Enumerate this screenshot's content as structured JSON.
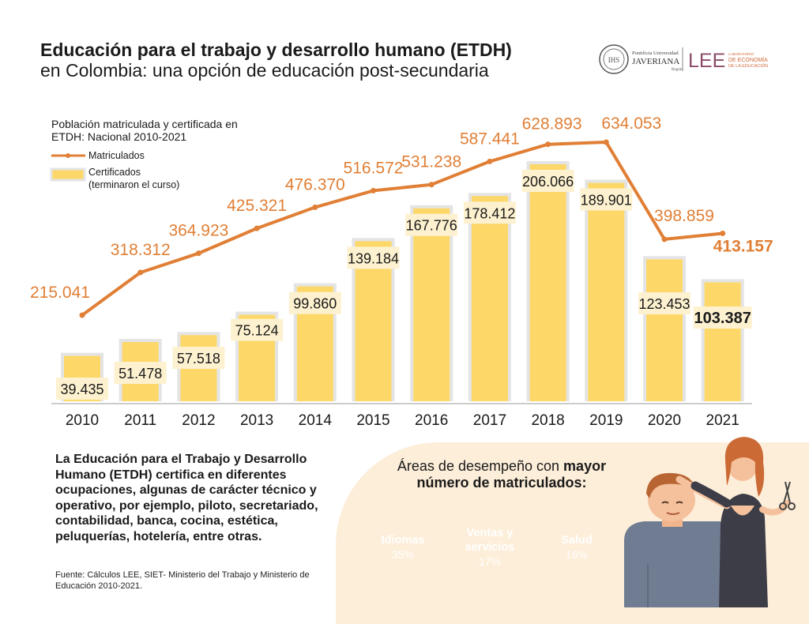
{
  "header": {
    "title_line1": "Educación para el trabajo y desarrollo humano (ETDH)",
    "title_line2": "en Colombia: una opción de educación post-secundaria"
  },
  "logos": {
    "university_line1": "Pontificia Universidad",
    "university_name": "JAVERIANA",
    "university_city": "Bogotá",
    "lee_short": "LEE",
    "lee_line1": "LABORATORIO",
    "lee_line2": "DE ECONOMÍA",
    "lee_line3": "DE LA EDUCACIÓN"
  },
  "chart_data": {
    "type": "bar",
    "title": "Población matriculada y certificada en ETDH: Nacional 2010-2021",
    "title_line1": "Población matriculada y certificada en",
    "title_line2": "ETDH: Nacional 2010-2021",
    "categories": [
      "2010",
      "2011",
      "2012",
      "2013",
      "2014",
      "2015",
      "2016",
      "2017",
      "2018",
      "2019",
      "2020",
      "2021"
    ],
    "series": [
      {
        "name": "Matriculados",
        "type": "line",
        "values": [
          215041,
          318312,
          364923,
          425321,
          476370,
          516572,
          531238,
          587441,
          628893,
          634053,
          398859,
          413157
        ],
        "labels": [
          "215.041",
          "318.312",
          "364.923",
          "425.321",
          "476.370",
          "516.572",
          "531.238",
          "587.441",
          "628.893",
          "634.053",
          "398.859",
          "413.157"
        ]
      },
      {
        "name": "Certificados (terminaron el curso)",
        "name_line1": "Certificados",
        "name_line2": "(terminaron el curso)",
        "type": "bar",
        "values": [
          39435,
          51478,
          57518,
          75124,
          99860,
          139184,
          167776,
          178412,
          206066,
          189901,
          123453,
          103387
        ],
        "labels": [
          "39.435",
          "51.478",
          "57.518",
          "75.124",
          "99.860",
          "139.184",
          "167.776",
          "178.412",
          "206.066",
          "189.901",
          "123.453",
          "103.387"
        ]
      }
    ],
    "legend_position": "top-left",
    "grid": false,
    "colors": {
      "line": "#e07f35",
      "bar": "#fdd868",
      "bar_shadow": "#e4e4e4",
      "label_box": "#fdf1cf"
    }
  },
  "description": "La Educación para el Trabajo y Desarrollo Humano (ETDH) certifica en diferentes ocupaciones, algunas de carácter técnico y operativo, por ejemplo, piloto, secretariado, contabilidad, banca, cocina, estética, peluquerías, hotelería, entre otras.",
  "source": "Fuente: Cálculos LEE, SIET- Ministerio del Trabajo y Ministerio de Educación 2010-2021.",
  "areas": {
    "title_normal": "Áreas de desempeño con ",
    "title_bold1": "mayor",
    "title_bold2": "número de matriculados:",
    "items": [
      {
        "label": "Idiomas",
        "label2": "",
        "pct": "35%",
        "color": "#c3461c",
        "share": 35
      },
      {
        "label": "Ventas y",
        "label2": "servicios",
        "pct": "17%",
        "color": "#d3702b",
        "share": 17
      },
      {
        "label": "Salud",
        "label2": "",
        "pct": "16%",
        "color": "#e07a30",
        "share": 16
      }
    ]
  }
}
